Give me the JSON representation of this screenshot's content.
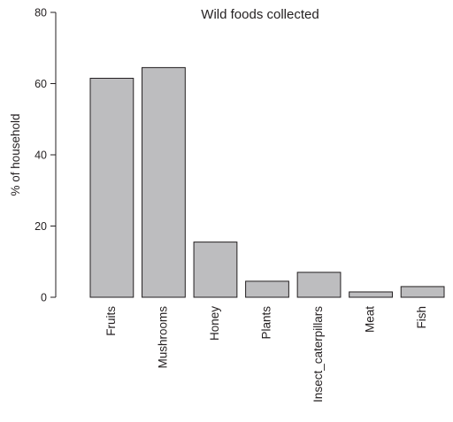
{
  "chart_data": {
    "type": "bar",
    "title": "Wild foods collected",
    "xlabel": "",
    "ylabel": "% of household",
    "categories": [
      "Fruits",
      "Mushrooms",
      "Honey",
      "Plants",
      "Insect_caterpillars",
      "Meat",
      "Fish"
    ],
    "values": [
      61.5,
      64.5,
      15.5,
      4.5,
      7,
      1.5,
      3
    ],
    "ylim": [
      0,
      80
    ],
    "yticks": [
      0,
      20,
      40,
      60,
      80
    ],
    "grid": false,
    "legend": "none",
    "colors": {
      "bar_fill": "#bdbdbf",
      "bar_stroke": "#231f20",
      "text": "#231f20"
    }
  }
}
